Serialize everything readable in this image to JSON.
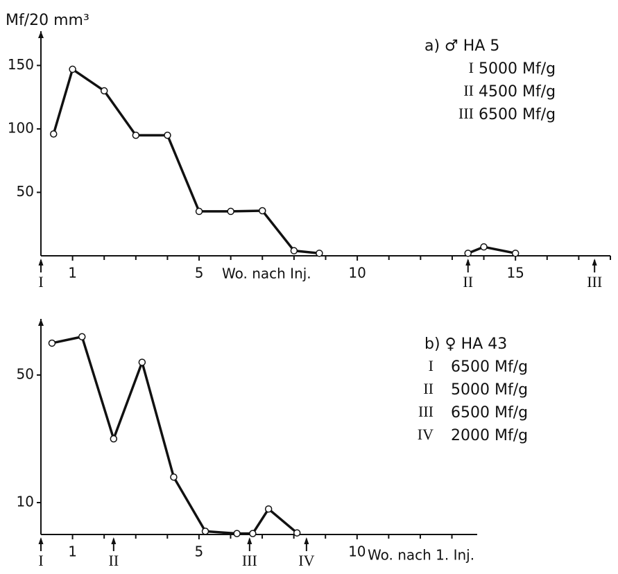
{
  "chart_data": [
    {
      "type": "line",
      "ylabel": "Mf/20 mm³",
      "xlabel": "Wo. nach Inj.",
      "color": "#111111",
      "xlim": [
        0,
        18
      ],
      "ylim": [
        0,
        177
      ],
      "xticks": [
        1,
        5,
        10,
        15
      ],
      "minor_xticks": [
        2,
        3,
        4,
        6,
        7,
        8,
        9,
        11,
        12,
        13,
        14,
        16,
        17,
        18
      ],
      "yticks": [
        50,
        100,
        150
      ],
      "series": [
        {
          "x": [
            0.4,
            1,
            2,
            3,
            4,
            5,
            6,
            7,
            8,
            8.8
          ],
          "values": [
            96,
            147,
            130,
            95,
            95,
            35,
            35,
            35.5,
            4,
            2
          ]
        },
        {
          "x": [
            13.5,
            14,
            15
          ],
          "values": [
            2,
            7,
            2
          ]
        }
      ],
      "injections": [
        {
          "label": "I",
          "x": 0
        },
        {
          "label": "II",
          "x": 13.5
        },
        {
          "label": "III",
          "x": 17.5
        }
      ],
      "legend": {
        "title": "a) ♂ HA 5",
        "entries": [
          {
            "label": "I",
            "dose": "5000 Mf/g"
          },
          {
            "label": "II",
            "dose": "4500 Mf/g"
          },
          {
            "label": "III",
            "dose": "6500 Mf/g"
          }
        ]
      }
    },
    {
      "type": "line",
      "xlabel": "Wo. nach 1. Inj.",
      "color": "#111111",
      "xlim": [
        0,
        13.8
      ],
      "ylim": [
        0,
        67.6
      ],
      "xticks": [
        1,
        5,
        10
      ],
      "minor_xticks": [
        2,
        3,
        4,
        6,
        7,
        8,
        9,
        11,
        12,
        13
      ],
      "yticks": [
        10,
        50
      ],
      "series": [
        {
          "x": [
            0.35,
            1.3,
            2.3,
            3.2,
            4.2,
            5.2,
            6.2,
            6.7,
            7.2,
            8.1
          ],
          "values": [
            60,
            62,
            30,
            54,
            18,
            1,
            0.3,
            0.3,
            8,
            0.5
          ]
        }
      ],
      "injections": [
        {
          "label": "I",
          "x": 0
        },
        {
          "label": "II",
          "x": 2.3
        },
        {
          "label": "III",
          "x": 6.6
        },
        {
          "label": "IV",
          "x": 8.4
        }
      ],
      "legend": {
        "title": "b) ♀ HA 43",
        "entries": [
          {
            "label": "I",
            "dose": "6500 Mf/g"
          },
          {
            "label": "II",
            "dose": "5000 Mf/g"
          },
          {
            "label": "III",
            "dose": "6500 Mf/g"
          },
          {
            "label": "IV",
            "dose": "2000 Mf/g"
          }
        ]
      }
    }
  ]
}
